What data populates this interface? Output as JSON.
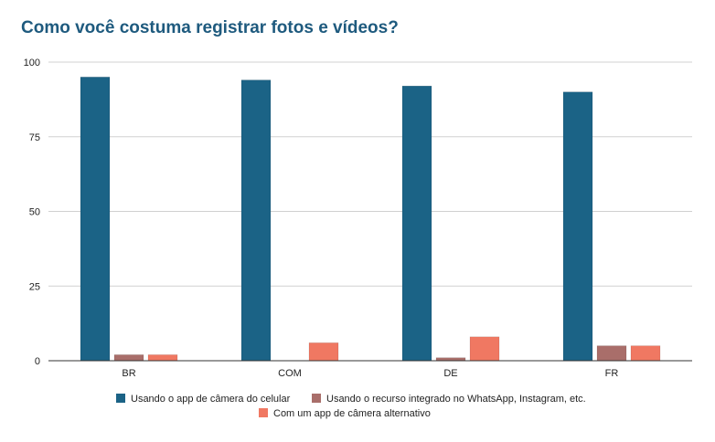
{
  "chart_data": {
    "type": "bar",
    "title": "Como você costuma registrar fotos e vídeos?",
    "xlabel": "",
    "ylabel": "",
    "categories": [
      "BR",
      "COM",
      "DE",
      "FR"
    ],
    "ylim": [
      0,
      100
    ],
    "yticks": [
      0,
      25,
      50,
      75,
      100
    ],
    "grid": true,
    "legend_position": "bottom",
    "series": [
      {
        "name": "Usando o app de câmera do celular",
        "color": "#1b6386",
        "values": [
          95,
          94,
          92,
          90
        ]
      },
      {
        "name": "Usando o recurso integrado no WhatsApp, Instagram, etc.",
        "color": "#a96e6a",
        "values": [
          2,
          0,
          1,
          5
        ]
      },
      {
        "name": "Com um app de câmera alternativo",
        "color": "#f07862",
        "values": [
          2,
          6,
          8,
          5
        ]
      }
    ]
  }
}
